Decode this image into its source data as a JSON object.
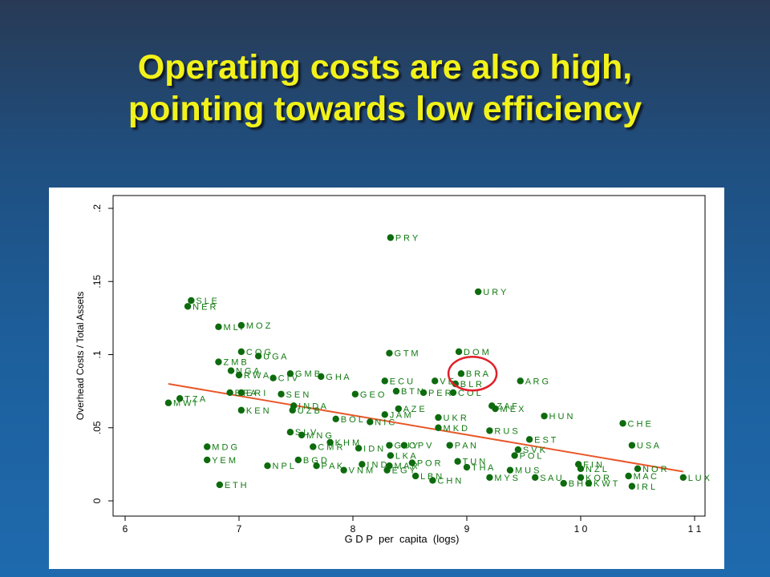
{
  "slide": {
    "title_line1": "Operating costs are also high,",
    "title_line2": "pointing towards low efficiency"
  },
  "colors": {
    "point": "#0d6b0d",
    "label": "#117a11",
    "fit_line": "#e8582a",
    "highlight": "#e0202a",
    "title": "#f2f21a"
  },
  "chart_data": {
    "type": "scatter",
    "xlabel": "G D P  per  capita  (logs)",
    "ylabel": "Overhead Costs / Total Assets",
    "xlim": [
      6,
      11
    ],
    "ylim": [
      0,
      0.2
    ],
    "x_ticks": [
      6,
      7,
      8,
      9,
      10,
      11
    ],
    "x_tick_labels": [
      "6",
      "7",
      "8",
      "9",
      "1 0",
      "1 1"
    ],
    "y_ticks": [
      0,
      0.05,
      0.1,
      0.15,
      0.2
    ],
    "y_tick_labels": [
      "0",
      ".05",
      ".1",
      ".15",
      ".2"
    ],
    "grid": false,
    "fit_line": {
      "x": [
        6.38,
        10.9
      ],
      "y": [
        0.08,
        0.02
      ]
    },
    "highlight": {
      "label": "BRA",
      "x": 9.05,
      "y": 0.087
    },
    "points": [
      {
        "label": "P R Y",
        "x": 8.33,
        "y": 0.18
      },
      {
        "label": "U R Y",
        "x": 9.1,
        "y": 0.143
      },
      {
        "label": "S L E",
        "x": 6.58,
        "y": 0.137
      },
      {
        "label": "N E R",
        "x": 6.55,
        "y": 0.133
      },
      {
        "label": "M L I",
        "x": 6.82,
        "y": 0.119
      },
      {
        "label": "M O Z",
        "x": 7.02,
        "y": 0.12
      },
      {
        "label": "C O G",
        "x": 7.02,
        "y": 0.102
      },
      {
        "label": "U G A",
        "x": 7.17,
        "y": 0.099
      },
      {
        "label": "G T M",
        "x": 8.32,
        "y": 0.101
      },
      {
        "label": "D O M",
        "x": 8.93,
        "y": 0.102
      },
      {
        "label": "Z M B",
        "x": 6.82,
        "y": 0.095
      },
      {
        "label": "N G A",
        "x": 6.93,
        "y": 0.089
      },
      {
        "label": "R W A",
        "x": 7.0,
        "y": 0.086
      },
      {
        "label": "C I V",
        "x": 7.3,
        "y": 0.084
      },
      {
        "label": "G M B",
        "x": 7.45,
        "y": 0.087
      },
      {
        "label": "G H A",
        "x": 7.72,
        "y": 0.085
      },
      {
        "label": "B R A",
        "x": 8.95,
        "y": 0.087
      },
      {
        "label": "B L R",
        "x": 8.9,
        "y": 0.08
      },
      {
        "label": "E C U",
        "x": 8.28,
        "y": 0.082
      },
      {
        "label": "V E",
        "x": 8.72,
        "y": 0.082
      },
      {
        "label": "A R G",
        "x": 9.47,
        "y": 0.082
      },
      {
        "label": "B F A",
        "x": 6.92,
        "y": 0.074
      },
      {
        "label": "E R I",
        "x": 7.02,
        "y": 0.074
      },
      {
        "label": "S E N",
        "x": 7.37,
        "y": 0.073
      },
      {
        "label": "G E O",
        "x": 8.02,
        "y": 0.073
      },
      {
        "label": "B T N",
        "x": 8.38,
        "y": 0.075
      },
      {
        "label": "P E R",
        "x": 8.62,
        "y": 0.074
      },
      {
        "label": "C O L",
        "x": 8.88,
        "y": 0.074
      },
      {
        "label": "T Z A",
        "x": 6.48,
        "y": 0.07
      },
      {
        "label": "M W I",
        "x": 6.38,
        "y": 0.067
      },
      {
        "label": "I N D A",
        "x": 7.48,
        "y": 0.065
      },
      {
        "label": "U Z B",
        "x": 7.47,
        "y": 0.062
      },
      {
        "label": "K E N",
        "x": 7.02,
        "y": 0.062
      },
      {
        "label": "A Z E",
        "x": 8.4,
        "y": 0.063
      },
      {
        "label": "J A M",
        "x": 8.28,
        "y": 0.059
      },
      {
        "label": "Z A F",
        "x": 9.22,
        "y": 0.065
      },
      {
        "label": "M E X",
        "x": 9.25,
        "y": 0.063
      },
      {
        "label": "B O L",
        "x": 7.85,
        "y": 0.056
      },
      {
        "label": "N I C",
        "x": 8.15,
        "y": 0.054
      },
      {
        "label": "U K R",
        "x": 8.75,
        "y": 0.057
      },
      {
        "label": "H U N",
        "x": 9.68,
        "y": 0.058
      },
      {
        "label": "M K D",
        "x": 8.75,
        "y": 0.05
      },
      {
        "label": "R U S",
        "x": 9.2,
        "y": 0.048
      },
      {
        "label": "C H E",
        "x": 10.37,
        "y": 0.053
      },
      {
        "label": "S L V",
        "x": 7.45,
        "y": 0.047
      },
      {
        "label": "M N G",
        "x": 7.55,
        "y": 0.045
      },
      {
        "label": "E S T",
        "x": 9.55,
        "y": 0.042
      },
      {
        "label": "K H M",
        "x": 7.8,
        "y": 0.04
      },
      {
        "label": "C M R",
        "x": 7.65,
        "y": 0.037
      },
      {
        "label": "I D N",
        "x": 8.05,
        "y": 0.036
      },
      {
        "label": "G U Y",
        "x": 8.32,
        "y": 0.038
      },
      {
        "label": "C P V",
        "x": 8.45,
        "y": 0.038
      },
      {
        "label": "P A N",
        "x": 8.85,
        "y": 0.038
      },
      {
        "label": "S V K",
        "x": 9.45,
        "y": 0.035
      },
      {
        "label": "U S A",
        "x": 10.45,
        "y": 0.038
      },
      {
        "label": "M D G",
        "x": 6.72,
        "y": 0.037
      },
      {
        "label": "Y E M",
        "x": 6.72,
        "y": 0.028
      },
      {
        "label": "L K A",
        "x": 8.33,
        "y": 0.031
      },
      {
        "label": "P O L",
        "x": 9.42,
        "y": 0.031
      },
      {
        "label": "B G D",
        "x": 7.52,
        "y": 0.028
      },
      {
        "label": "P O R",
        "x": 8.52,
        "y": 0.026
      },
      {
        "label": "T U N",
        "x": 8.92,
        "y": 0.027
      },
      {
        "label": "N P L",
        "x": 7.25,
        "y": 0.024
      },
      {
        "label": "P A K",
        "x": 7.68,
        "y": 0.024
      },
      {
        "label": "I N D",
        "x": 8.08,
        "y": 0.025
      },
      {
        "label": "M A R",
        "x": 8.32,
        "y": 0.024
      },
      {
        "label": "T H A",
        "x": 9.0,
        "y": 0.023
      },
      {
        "label": "N O R",
        "x": 10.5,
        "y": 0.022
      },
      {
        "label": "V N M",
        "x": 7.92,
        "y": 0.021
      },
      {
        "label": "E G Y",
        "x": 8.3,
        "y": 0.021
      },
      {
        "label": "M U S",
        "x": 9.38,
        "y": 0.021
      },
      {
        "label": "L B N",
        "x": 8.55,
        "y": 0.017
      },
      {
        "label": "M Y S",
        "x": 9.2,
        "y": 0.016
      },
      {
        "label": "S A U",
        "x": 9.6,
        "y": 0.016
      },
      {
        "label": "M A C",
        "x": 10.42,
        "y": 0.017
      },
      {
        "label": "L U X",
        "x": 10.9,
        "y": 0.016
      },
      {
        "label": "C H N",
        "x": 8.7,
        "y": 0.014
      },
      {
        "label": "B H R",
        "x": 9.85,
        "y": 0.012
      },
      {
        "label": "K W T",
        "x": 10.07,
        "y": 0.012
      },
      {
        "label": "I R L",
        "x": 10.45,
        "y": 0.01
      },
      {
        "label": "E T H",
        "x": 6.83,
        "y": 0.011
      },
      {
        "label": "K O R",
        "x": 10.0,
        "y": 0.016
      },
      {
        "label": "N Z L",
        "x": 10.0,
        "y": 0.022
      },
      {
        "label": "F I N",
        "x": 9.98,
        "y": 0.025
      }
    ]
  }
}
